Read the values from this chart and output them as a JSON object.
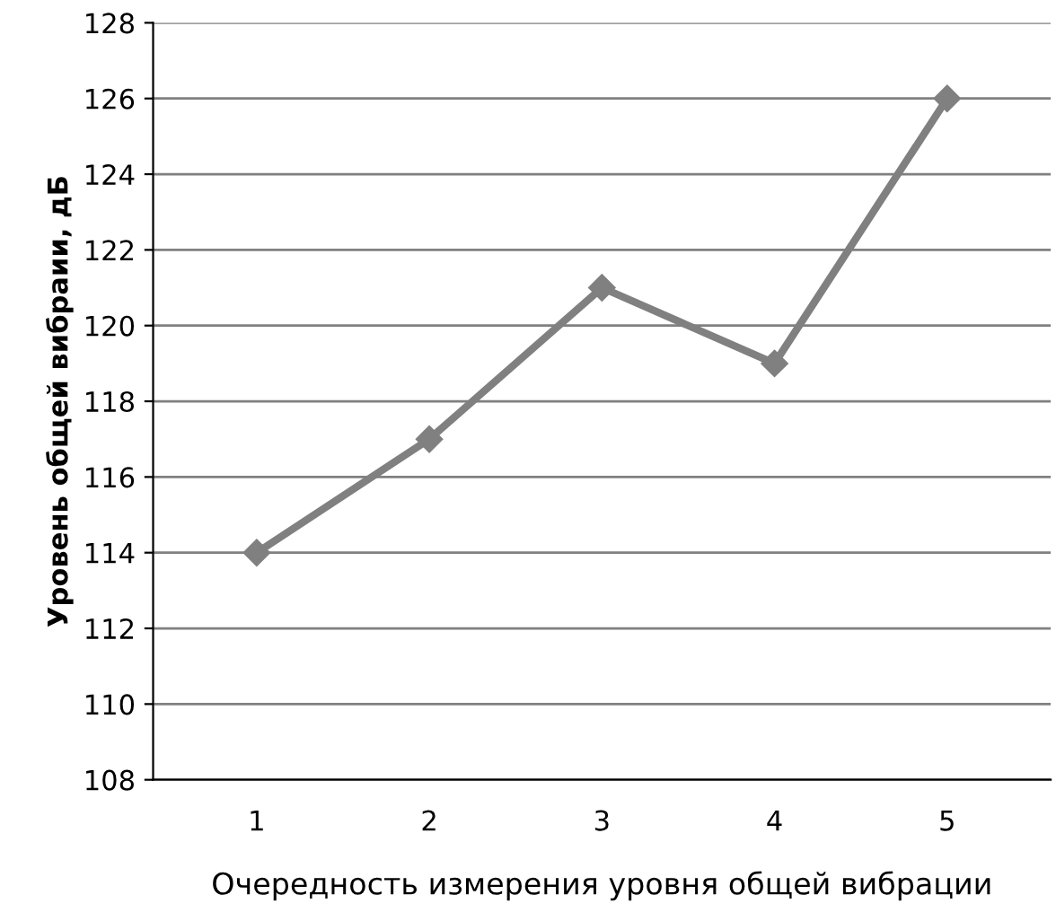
{
  "chart_data": {
    "type": "line",
    "xlabel": "Очередность измерения уровня общей вибрации",
    "ylabel": "Уровень общей вибраии, дБ",
    "categories": [
      "1",
      "2",
      "3",
      "4",
      "5"
    ],
    "series": [
      {
        "color": "#808080",
        "values": [
          114,
          117,
          121,
          119,
          126
        ]
      }
    ],
    "ylim": [
      108,
      128
    ],
    "yticks": [
      108,
      110,
      112,
      114,
      116,
      118,
      120,
      122,
      124,
      126,
      128
    ],
    "grid": "y",
    "marker": "diamond",
    "line_style": "solid"
  }
}
